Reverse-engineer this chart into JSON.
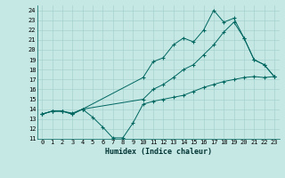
{
  "title": "",
  "xlabel": "Humidex (Indice chaleur)",
  "ylabel": "",
  "xlim": [
    -0.5,
    23.5
  ],
  "ylim": [
    11,
    24.5
  ],
  "yticks": [
    11,
    12,
    13,
    14,
    15,
    16,
    17,
    18,
    19,
    20,
    21,
    22,
    23,
    24
  ],
  "xticks": [
    0,
    1,
    2,
    3,
    4,
    5,
    6,
    7,
    8,
    9,
    10,
    11,
    12,
    13,
    14,
    15,
    16,
    17,
    18,
    19,
    20,
    21,
    22,
    23
  ],
  "bg_color": "#c5e8e4",
  "line_color": "#006660",
  "series": [
    {
      "x": [
        0,
        1,
        2,
        3,
        4,
        5,
        6,
        7,
        8,
        9,
        10,
        11,
        12,
        13,
        14,
        15,
        16,
        17,
        18,
        19,
        20,
        21,
        22,
        23
      ],
      "y": [
        13.5,
        13.8,
        13.8,
        13.6,
        14.0,
        13.2,
        12.2,
        11.1,
        11.1,
        12.6,
        14.5,
        14.8,
        15.0,
        15.2,
        15.4,
        15.8,
        16.2,
        16.5,
        16.8,
        17.0,
        17.2,
        17.3,
        17.2,
        17.3
      ]
    },
    {
      "x": [
        0,
        1,
        2,
        3,
        4,
        10,
        11,
        12,
        13,
        14,
        15,
        16,
        17,
        18,
        19,
        20,
        21,
        22,
        23
      ],
      "y": [
        13.5,
        13.8,
        13.8,
        13.5,
        14.0,
        17.2,
        18.8,
        19.2,
        20.5,
        21.2,
        20.8,
        22.0,
        24.0,
        22.8,
        23.2,
        21.2,
        19.0,
        18.5,
        17.3
      ]
    },
    {
      "x": [
        0,
        1,
        2,
        3,
        4,
        10,
        11,
        12,
        13,
        14,
        15,
        16,
        17,
        18,
        19,
        20,
        21,
        22,
        23
      ],
      "y": [
        13.5,
        13.8,
        13.8,
        13.5,
        14.0,
        15.0,
        16.0,
        16.5,
        17.2,
        18.0,
        18.5,
        19.5,
        20.5,
        21.8,
        22.8,
        21.2,
        19.0,
        18.5,
        17.3
      ]
    }
  ]
}
